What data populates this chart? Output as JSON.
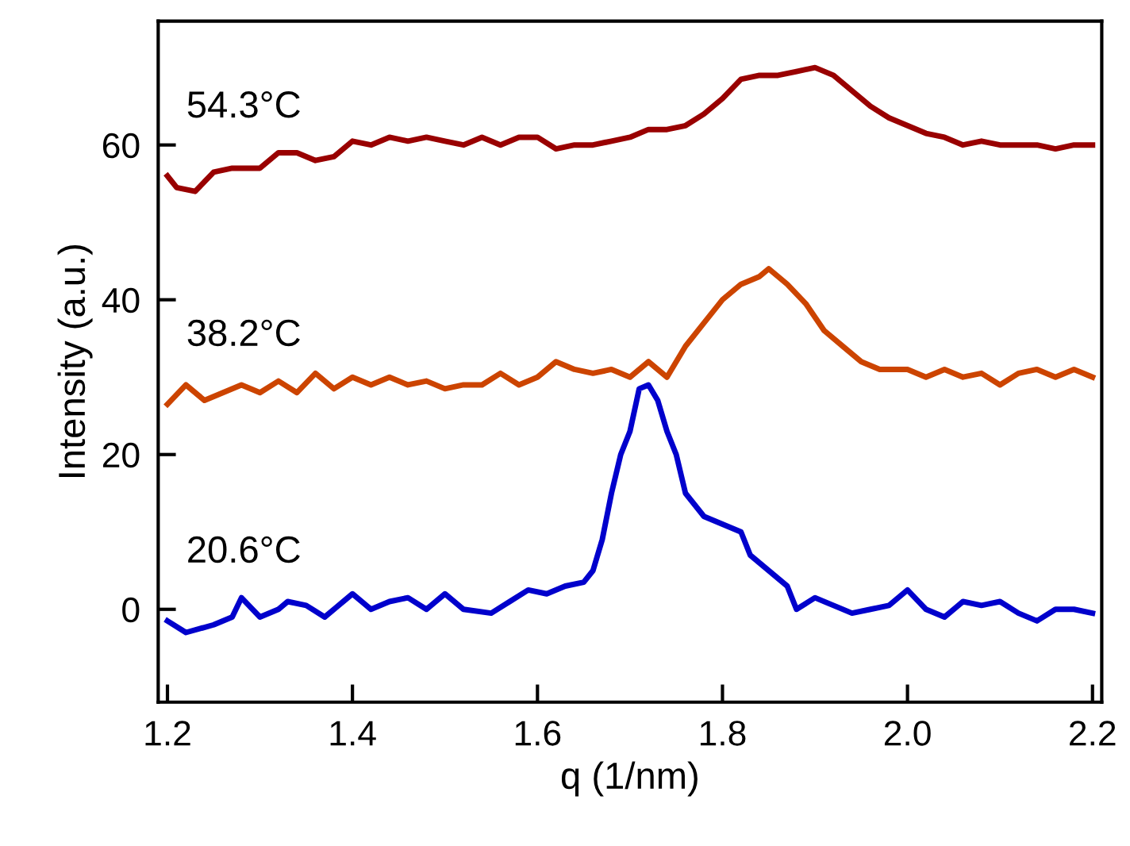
{
  "chart_data": {
    "type": "line",
    "xlabel": "q (1/nm)",
    "ylabel": "Intensity (a.u.)",
    "xlim": [
      1.19,
      2.21
    ],
    "ylim": [
      -12,
      76
    ],
    "xticks": [
      {
        "value": 1.2,
        "label": "1.2"
      },
      {
        "value": 1.4,
        "label": "1.4"
      },
      {
        "value": 1.6,
        "label": "1.6"
      },
      {
        "value": 1.8,
        "label": "1.8"
      },
      {
        "value": 2.0,
        "label": "2.0"
      },
      {
        "value": 2.2,
        "label": "2.2"
      }
    ],
    "yticks": [
      0,
      20,
      40,
      60
    ],
    "grid": false,
    "legend": false,
    "marker": "none",
    "line_style": "solid",
    "series": [
      {
        "name": "20.6°C",
        "color": "#0000cc",
        "x": [
          1.2,
          1.22,
          1.25,
          1.27,
          1.28,
          1.3,
          1.32,
          1.33,
          1.35,
          1.37,
          1.39,
          1.4,
          1.42,
          1.44,
          1.46,
          1.48,
          1.5,
          1.52,
          1.55,
          1.57,
          1.59,
          1.61,
          1.63,
          1.65,
          1.66,
          1.67,
          1.68,
          1.69,
          1.7,
          1.71,
          1.72,
          1.73,
          1.74,
          1.75,
          1.76,
          1.78,
          1.8,
          1.82,
          1.83,
          1.85,
          1.87,
          1.88,
          1.9,
          1.92,
          1.94,
          1.96,
          1.98,
          2.0,
          2.02,
          2.04,
          2.06,
          2.08,
          2.1,
          2.12,
          2.14,
          2.16,
          2.18,
          2.2
        ],
        "values": [
          -1.5,
          -3,
          -2,
          -1,
          1.5,
          -1,
          0,
          1,
          0.5,
          -1,
          1,
          2,
          0,
          1,
          1.5,
          0,
          2,
          0,
          -0.5,
          1,
          2.5,
          2,
          3,
          3.5,
          5,
          9,
          15,
          20,
          23,
          28.5,
          29,
          27,
          23,
          20,
          15,
          12,
          11,
          10,
          7,
          5,
          3,
          0,
          1.5,
          0.5,
          -0.5,
          0,
          0.5,
          2.5,
          0,
          -1,
          1,
          0.5,
          1,
          -0.5,
          -1.5,
          0,
          0,
          -0.5
        ]
      },
      {
        "name": "38.2°C",
        "color": "#cc4400",
        "x": [
          1.2,
          1.22,
          1.24,
          1.26,
          1.28,
          1.3,
          1.32,
          1.34,
          1.36,
          1.38,
          1.4,
          1.42,
          1.44,
          1.46,
          1.48,
          1.5,
          1.52,
          1.54,
          1.56,
          1.58,
          1.6,
          1.62,
          1.64,
          1.66,
          1.68,
          1.7,
          1.72,
          1.74,
          1.76,
          1.78,
          1.8,
          1.82,
          1.84,
          1.85,
          1.87,
          1.89,
          1.91,
          1.93,
          1.95,
          1.97,
          2.0,
          2.02,
          2.04,
          2.06,
          2.08,
          2.1,
          2.12,
          2.14,
          2.16,
          2.18,
          2.2
        ],
        "values": [
          26.5,
          29,
          27,
          28,
          29,
          28,
          29.5,
          28,
          30.5,
          28.5,
          30,
          29,
          30,
          29,
          29.5,
          28.5,
          29,
          29,
          30.5,
          29,
          30,
          32,
          31,
          30.5,
          31,
          30,
          32,
          30,
          34,
          37,
          40,
          42,
          43,
          44,
          42,
          39.5,
          36,
          34,
          32,
          31,
          31,
          30,
          31,
          30,
          30.5,
          29,
          30.5,
          31,
          30,
          31,
          30
        ]
      },
      {
        "name": "54.3°C",
        "color": "#990000",
        "x": [
          1.2,
          1.21,
          1.23,
          1.25,
          1.27,
          1.3,
          1.32,
          1.34,
          1.36,
          1.38,
          1.4,
          1.42,
          1.44,
          1.46,
          1.48,
          1.5,
          1.52,
          1.54,
          1.56,
          1.58,
          1.6,
          1.62,
          1.64,
          1.66,
          1.68,
          1.7,
          1.72,
          1.74,
          1.76,
          1.78,
          1.8,
          1.82,
          1.84,
          1.86,
          1.88,
          1.9,
          1.92,
          1.94,
          1.96,
          1.98,
          2.0,
          2.02,
          2.04,
          2.06,
          2.08,
          2.1,
          2.12,
          2.14,
          2.16,
          2.18,
          2.2
        ],
        "values": [
          56,
          54.5,
          54,
          56.5,
          57,
          57,
          59,
          59,
          58,
          58.5,
          60.5,
          60,
          61,
          60.5,
          61,
          60.5,
          60,
          61,
          60,
          61,
          61,
          59.5,
          60,
          60,
          60.5,
          61,
          62,
          62,
          62.5,
          64,
          66,
          68.5,
          69,
          69,
          69.5,
          70,
          69,
          67,
          65,
          63.5,
          62.5,
          61.5,
          61,
          60,
          60.5,
          60,
          60,
          60,
          59.5,
          60,
          60
        ]
      }
    ]
  }
}
